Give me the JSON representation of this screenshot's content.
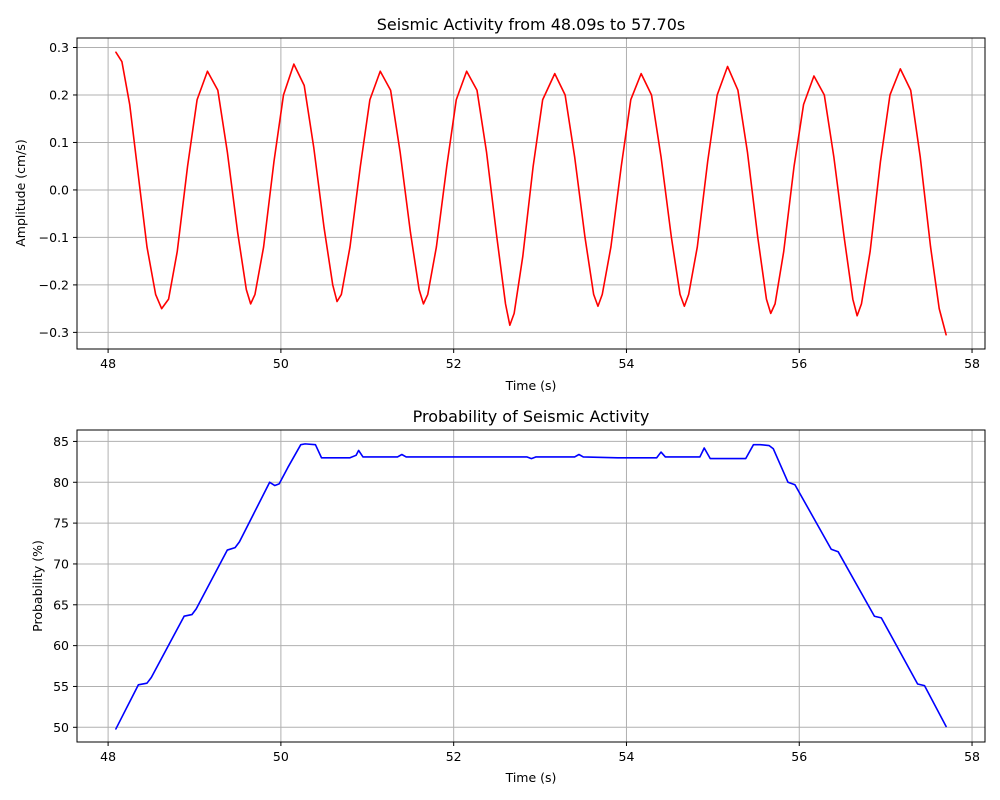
{
  "chart_data": [
    {
      "type": "line",
      "title": "Seismic Activity from 48.09s to 57.70s",
      "xlabel": "Time (s)",
      "ylabel": "Amplitude (cm/s)",
      "xlim": [
        47.64,
        58.15
      ],
      "ylim": [
        -0.335,
        0.32
      ],
      "xticks": [
        48,
        50,
        52,
        54,
        56,
        58
      ],
      "yticks": [
        -0.3,
        -0.2,
        -0.1,
        0.0,
        0.1,
        0.2,
        0.3
      ],
      "ytick_labels": [
        "−0.3",
        "−0.2",
        "−0.1",
        "0.0",
        "0.1",
        "0.2",
        "0.3"
      ],
      "grid": true,
      "color": "#ff0000",
      "series": [
        {
          "x": [
            48.09,
            48.16,
            48.25,
            48.35,
            48.45,
            48.55,
            48.62,
            48.7,
            48.8,
            48.92,
            49.03,
            49.15,
            49.27,
            49.38,
            49.5,
            49.6,
            49.65,
            49.7,
            49.8,
            49.92,
            50.03,
            50.15,
            50.27,
            50.38,
            50.5,
            50.6,
            50.65,
            50.7,
            50.8,
            50.92,
            51.03,
            51.15,
            51.27,
            51.38,
            51.5,
            51.6,
            51.65,
            51.7,
            51.8,
            51.92,
            52.03,
            52.15,
            52.27,
            52.38,
            52.5,
            52.6,
            52.65,
            52.7,
            52.8,
            52.92,
            53.03,
            53.17,
            53.29,
            53.4,
            53.52,
            53.62,
            53.67,
            53.72,
            53.82,
            53.94,
            54.05,
            54.17,
            54.29,
            54.4,
            54.52,
            54.62,
            54.67,
            54.72,
            54.82,
            54.94,
            55.05,
            55.17,
            55.29,
            55.4,
            55.52,
            55.62,
            55.67,
            55.72,
            55.82,
            55.94,
            56.05,
            56.17,
            56.29,
            56.4,
            56.52,
            56.62,
            56.67,
            56.72,
            56.82,
            56.94,
            57.05,
            57.17,
            57.29,
            57.4,
            57.52,
            57.62,
            57.7
          ],
          "y": [
            0.29,
            0.27,
            0.18,
            0.03,
            -0.12,
            -0.22,
            -0.25,
            -0.23,
            -0.13,
            0.05,
            0.19,
            0.25,
            0.21,
            0.08,
            -0.09,
            -0.21,
            -0.24,
            -0.22,
            -0.12,
            0.06,
            0.2,
            0.265,
            0.22,
            0.09,
            -0.08,
            -0.2,
            -0.235,
            -0.22,
            -0.12,
            0.05,
            0.19,
            0.25,
            0.21,
            0.08,
            -0.09,
            -0.21,
            -0.24,
            -0.22,
            -0.12,
            0.05,
            0.19,
            0.25,
            0.21,
            0.08,
            -0.1,
            -0.24,
            -0.285,
            -0.26,
            -0.14,
            0.05,
            0.19,
            0.245,
            0.2,
            0.07,
            -0.1,
            -0.22,
            -0.245,
            -0.22,
            -0.12,
            0.05,
            0.19,
            0.245,
            0.2,
            0.07,
            -0.1,
            -0.22,
            -0.245,
            -0.22,
            -0.12,
            0.06,
            0.2,
            0.26,
            0.21,
            0.08,
            -0.1,
            -0.23,
            -0.26,
            -0.24,
            -0.13,
            0.05,
            0.18,
            0.24,
            0.2,
            0.07,
            -0.1,
            -0.23,
            -0.265,
            -0.24,
            -0.13,
            0.06,
            0.2,
            0.255,
            0.21,
            0.07,
            -0.12,
            -0.25,
            -0.305
          ]
        }
      ]
    },
    {
      "type": "line",
      "title": "Probability of Seismic Activity",
      "xlabel": "Time (s)",
      "ylabel": "Probability (%)",
      "xlim": [
        47.64,
        58.15
      ],
      "ylim": [
        48.2,
        86.4
      ],
      "xticks": [
        48,
        50,
        52,
        54,
        56,
        58
      ],
      "yticks": [
        50,
        55,
        60,
        65,
        70,
        75,
        80,
        85
      ],
      "ytick_labels": [
        "50",
        "55",
        "60",
        "65",
        "70",
        "75",
        "80",
        "85"
      ],
      "grid": true,
      "color": "#0000ff",
      "series": [
        {
          "x": [
            48.09,
            48.35,
            48.45,
            48.5,
            48.88,
            48.97,
            49.02,
            49.38,
            49.47,
            49.52,
            49.87,
            49.93,
            49.98,
            50.02,
            50.08,
            50.23,
            50.28,
            50.4,
            50.47,
            50.8,
            50.87,
            50.9,
            50.95,
            51.35,
            51.4,
            51.45,
            52.85,
            52.9,
            52.95,
            53.4,
            53.45,
            53.5,
            53.9,
            54.35,
            54.4,
            54.45,
            54.85,
            54.9,
            54.97,
            55.38,
            55.47,
            55.55,
            55.65,
            55.7,
            55.87,
            55.95,
            56.37,
            56.45,
            56.87,
            56.95,
            57.37,
            57.45,
            57.7
          ],
          "y": [
            49.8,
            55.2,
            55.4,
            56.1,
            63.6,
            63.8,
            64.5,
            71.7,
            72.0,
            72.7,
            80.0,
            79.6,
            79.8,
            80.6,
            81.8,
            84.6,
            84.7,
            84.6,
            83.0,
            83.0,
            83.3,
            83.9,
            83.1,
            83.1,
            83.4,
            83.1,
            83.1,
            82.9,
            83.1,
            83.1,
            83.4,
            83.1,
            83.0,
            83.0,
            83.7,
            83.1,
            83.1,
            84.2,
            82.9,
            82.9,
            84.6,
            84.6,
            84.5,
            84.1,
            80.0,
            79.7,
            71.8,
            71.5,
            63.6,
            63.4,
            55.3,
            55.1,
            50.1
          ]
        }
      ]
    }
  ]
}
